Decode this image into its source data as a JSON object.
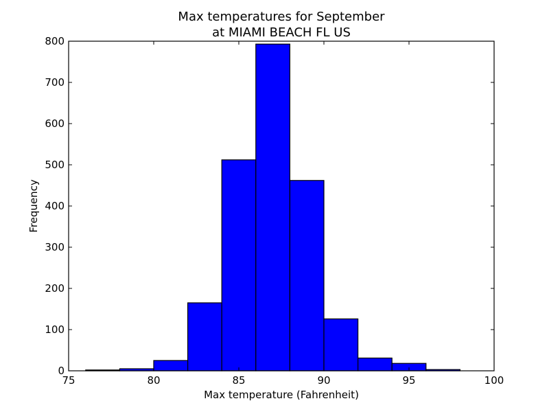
{
  "chart_data": {
    "type": "bar",
    "title_line1": "Max temperatures for September",
    "title_line2": "at MIAMI BEACH FL US",
    "xlabel": "Max temperature (Fahrenheit)",
    "ylabel": "Frequency",
    "xlim": [
      75,
      100
    ],
    "ylim": [
      0,
      800
    ],
    "xticks": [
      75,
      80,
      85,
      90,
      95,
      100
    ],
    "yticks": [
      0,
      100,
      200,
      300,
      400,
      500,
      600,
      700,
      800
    ],
    "bins": [
      {
        "start": 76,
        "end": 78,
        "value": 2
      },
      {
        "start": 78,
        "end": 80,
        "value": 5
      },
      {
        "start": 80,
        "end": 82,
        "value": 25
      },
      {
        "start": 82,
        "end": 84,
        "value": 165
      },
      {
        "start": 84,
        "end": 86,
        "value": 512
      },
      {
        "start": 86,
        "end": 88,
        "value": 793
      },
      {
        "start": 88,
        "end": 90,
        "value": 462
      },
      {
        "start": 90,
        "end": 92,
        "value": 126
      },
      {
        "start": 92,
        "end": 94,
        "value": 31
      },
      {
        "start": 94,
        "end": 96,
        "value": 18
      },
      {
        "start": 96,
        "end": 98,
        "value": 3
      }
    ],
    "bar_color": "#0000ff",
    "grid": false
  }
}
